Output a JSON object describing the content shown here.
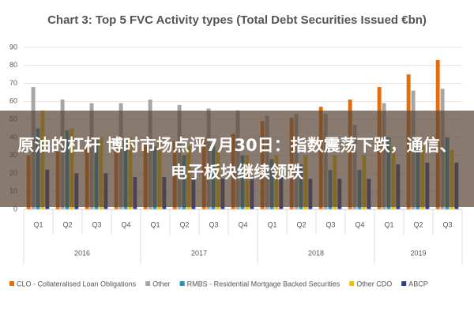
{
  "chart_data": {
    "type": "bar",
    "title": "Chart 3: Top 5 FVC Activity types (Total Debt Securities Issued €bn)",
    "categories": [
      "Q1",
      "Q2",
      "Q3",
      "Q4",
      "Q1",
      "Q2",
      "Q3",
      "Q4",
      "Q1",
      "Q2",
      "Q3",
      "Q4",
      "Q1",
      "Q2",
      "Q3"
    ],
    "category_groups": [
      "2016",
      "2016",
      "2016",
      "2016",
      "2017",
      "2017",
      "2017",
      "2017",
      "2018",
      "2018",
      "2018",
      "2018",
      "2019",
      "2019",
      "2019"
    ],
    "series": [
      {
        "name": "CLO - Collateralised Loan Obligations",
        "color": "#e46c0a",
        "values": [
          30,
          32,
          35,
          35,
          36,
          38,
          40,
          42,
          49,
          51,
          57,
          61,
          68,
          75,
          83
        ]
      },
      {
        "name": "Other",
        "color": "#a5a5a5",
        "values": [
          68,
          61,
          59,
          59,
          61,
          58,
          56,
          55,
          52,
          53,
          53,
          47,
          59,
          66,
          67
        ]
      },
      {
        "name": "RMBS - Residential Mortgage Backed Securities",
        "color": "#2a8fb5",
        "values": [
          45,
          44,
          40,
          38,
          35,
          30,
          35,
          30,
          28,
          25,
          22,
          22,
          40,
          38,
          40
        ]
      },
      {
        "name": "Other CDO",
        "color": "#f0c000",
        "values": [
          55,
          45,
          40,
          40,
          38,
          35,
          33,
          30,
          30,
          30,
          30,
          30,
          35,
          35,
          33
        ]
      },
      {
        "name": "ABCP",
        "color": "#2e3f8f",
        "values": [
          22,
          20,
          20,
          18,
          18,
          18,
          17,
          17,
          18,
          17,
          17,
          17,
          25,
          26,
          26
        ]
      }
    ],
    "ylim": [
      0,
      90
    ],
    "yticks": [
      0,
      10,
      20,
      30,
      40,
      50,
      60,
      70,
      80,
      90
    ],
    "grid": true,
    "legend": "bottom"
  },
  "overlay_text": "原油的杠杆 博时市场点评7月30日：指数震荡下跌，通信、电子板块继续领跌"
}
